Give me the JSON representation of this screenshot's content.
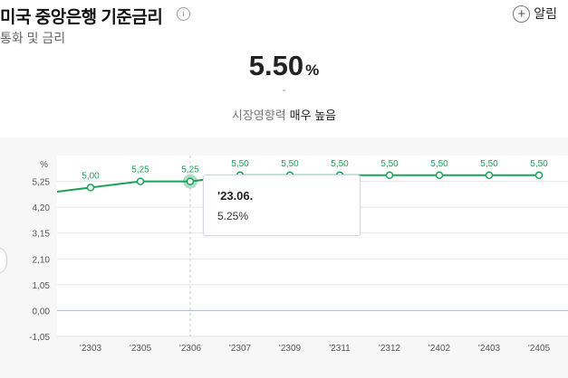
{
  "header": {
    "title": "미국 중앙은행 기준금리",
    "info_icon": "i",
    "subtitle": "통화 및 금리",
    "alert_icon": "+",
    "alert_label": "알림"
  },
  "summary": {
    "value": "5.50",
    "unit": "%",
    "dash": "-",
    "impact_label": "시장영향력",
    "impact_value": "매우 높음"
  },
  "tooltip": {
    "date": "'23.06.",
    "value": "5.25%"
  },
  "colors": {
    "line": "#1aa25a",
    "grid": "#e6e6e6",
    "zero_line": "#8ec9d8"
  },
  "chart_data": {
    "type": "line",
    "ylabel": "%",
    "ylim": [
      -1.05,
      6.3
    ],
    "yticks": [
      "5,25",
      "4,20",
      "3,15",
      "2,10",
      "1,05",
      "0,00",
      "-1,05"
    ],
    "ytick_values": [
      5.25,
      4.2,
      3.15,
      2.1,
      1.05,
      0.0,
      -1.05
    ],
    "categories": [
      "'2303",
      "'2305",
      "'2306",
      "'2307",
      "'2309",
      "'2311",
      "'2312",
      "'2402",
      "'2403",
      "'2405"
    ],
    "values": [
      5.0,
      5.25,
      5.25,
      5.5,
      5.5,
      5.5,
      5.5,
      5.5,
      5.5,
      5.5
    ],
    "data_labels": [
      "5,00",
      "5,25",
      "5,25",
      "5,50",
      "5,50",
      "5,50",
      "5,50",
      "5,50",
      "5,50",
      "5,50"
    ],
    "highlight_index": 2
  }
}
